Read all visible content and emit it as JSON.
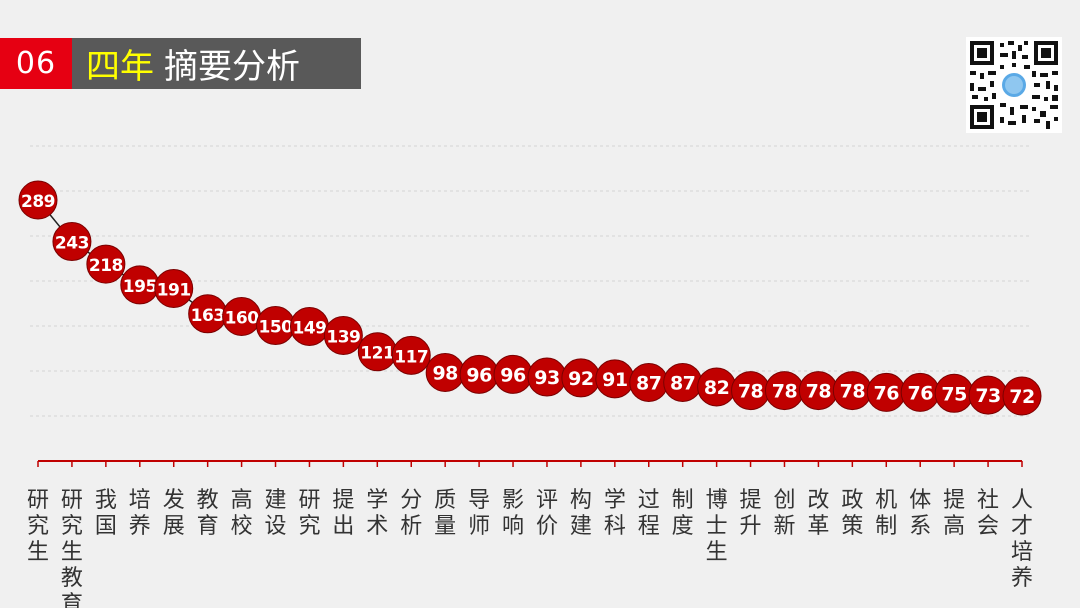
{
  "header": {
    "number": "06",
    "title_highlight": "四年",
    "title_rest": "摘要分析"
  },
  "colors": {
    "header_red": "#e60012",
    "header_gray": "#595959",
    "highlight_yellow": "#ffff00",
    "marker": "#c00000",
    "axis": "#c00000"
  },
  "qr_code": {
    "icon": "qr-code-icon"
  },
  "chart_data": {
    "type": "line",
    "title": "",
    "xlabel": "",
    "ylabel": "",
    "grid": true,
    "categories": [
      "研究生",
      "研究生教育",
      "我国",
      "培养",
      "发展",
      "教育",
      "高校",
      "建设",
      "研究",
      "提出",
      "学术",
      "分析",
      "质量",
      "导师",
      "影响",
      "评价",
      "构建",
      "学科",
      "过程",
      "制度",
      "博士生",
      "提升",
      "创新",
      "改革",
      "政策",
      "机制",
      "体系",
      "提高",
      "社会",
      "人才培养"
    ],
    "values": [
      289,
      243,
      218,
      195,
      191,
      163,
      160,
      150,
      149,
      139,
      121,
      117,
      98,
      96,
      96,
      93,
      92,
      91,
      87,
      87,
      82,
      78,
      78,
      78,
      78,
      76,
      76,
      75,
      73,
      72
    ]
  }
}
